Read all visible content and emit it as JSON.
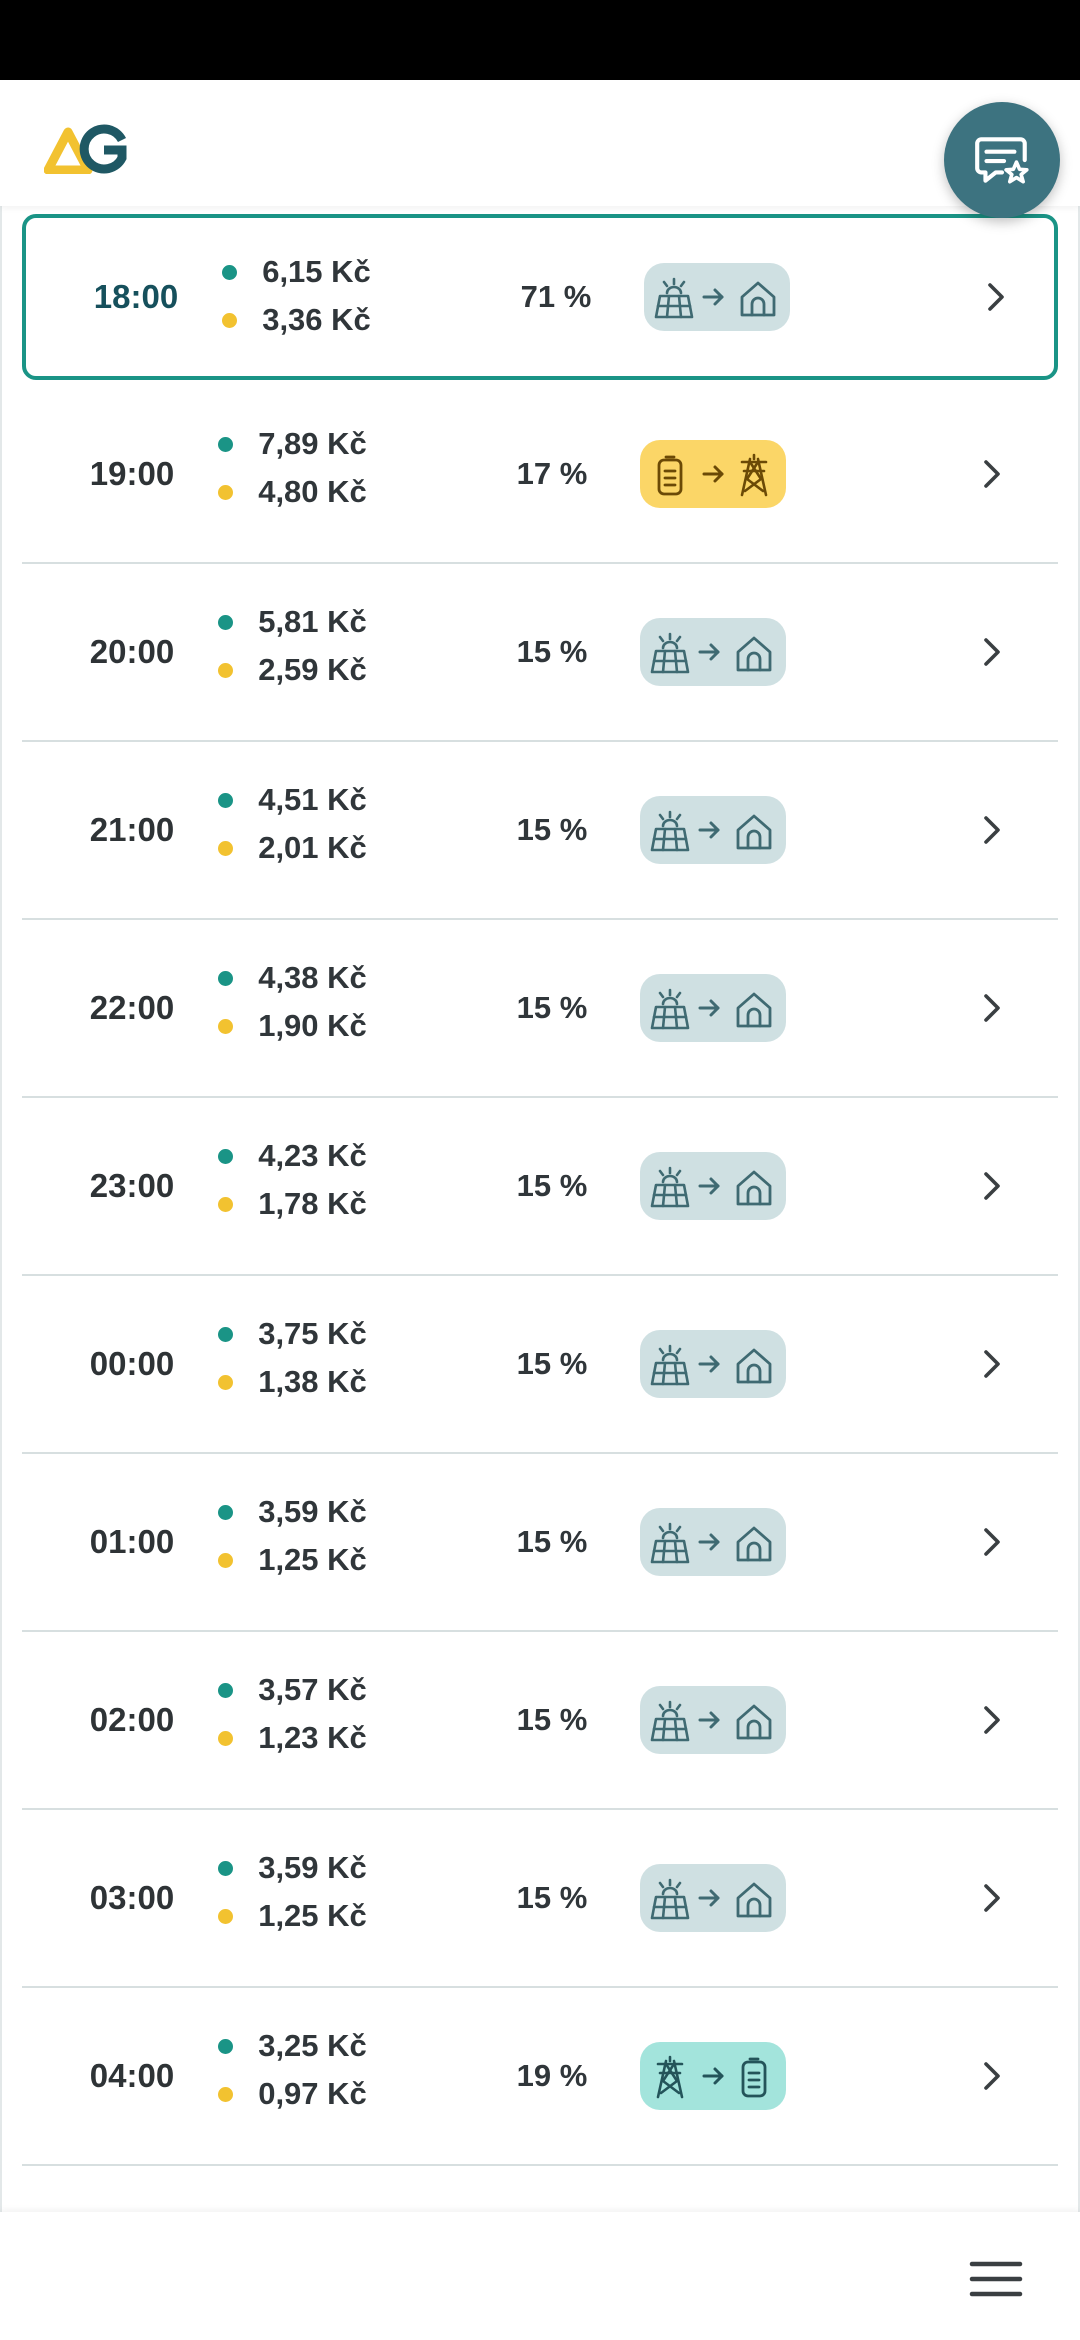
{
  "header": {
    "logo": "AG-logo",
    "feedback_icon": "feedback-star-icon"
  },
  "colors": {
    "accent": "#1a9486",
    "brand_dark": "#3d7380",
    "buy_dot": "#1a9486",
    "sell_dot": "#f2c230",
    "badge_solar_home": "#cfe0e2",
    "badge_battery_grid": "#fbd667",
    "badge_grid_battery": "#a3e4dc"
  },
  "rows": [
    {
      "time": "18:00",
      "buy_price": "6,15 Kč",
      "sell_price": "3,36 Kč",
      "percent": "71 %",
      "mode": "solar-to-home",
      "current": true
    },
    {
      "time": "19:00",
      "buy_price": "7,89 Kč",
      "sell_price": "4,80 Kč",
      "percent": "17 %",
      "mode": "battery-to-grid"
    },
    {
      "time": "20:00",
      "buy_price": "5,81 Kč",
      "sell_price": "2,59 Kč",
      "percent": "15 %",
      "mode": "solar-to-home"
    },
    {
      "time": "21:00",
      "buy_price": "4,51 Kč",
      "sell_price": "2,01 Kč",
      "percent": "15 %",
      "mode": "solar-to-home"
    },
    {
      "time": "22:00",
      "buy_price": "4,38 Kč",
      "sell_price": "1,90 Kč",
      "percent": "15 %",
      "mode": "solar-to-home"
    },
    {
      "time": "23:00",
      "buy_price": "4,23 Kč",
      "sell_price": "1,78 Kč",
      "percent": "15 %",
      "mode": "solar-to-home"
    },
    {
      "time": "00:00",
      "buy_price": "3,75 Kč",
      "sell_price": "1,38 Kč",
      "percent": "15 %",
      "mode": "solar-to-home"
    },
    {
      "time": "01:00",
      "buy_price": "3,59 Kč",
      "sell_price": "1,25 Kč",
      "percent": "15 %",
      "mode": "solar-to-home"
    },
    {
      "time": "02:00",
      "buy_price": "3,57 Kč",
      "sell_price": "1,23 Kč",
      "percent": "15 %",
      "mode": "solar-to-home"
    },
    {
      "time": "03:00",
      "buy_price": "3,59 Kč",
      "sell_price": "1,25 Kč",
      "percent": "15 %",
      "mode": "solar-to-home"
    },
    {
      "time": "04:00",
      "buy_price": "3,25 Kč",
      "sell_price": "0,97 Kč",
      "percent": "19 %",
      "mode": "grid-to-battery"
    }
  ],
  "bottom_bar": {
    "menu_icon": "hamburger-menu-icon"
  }
}
